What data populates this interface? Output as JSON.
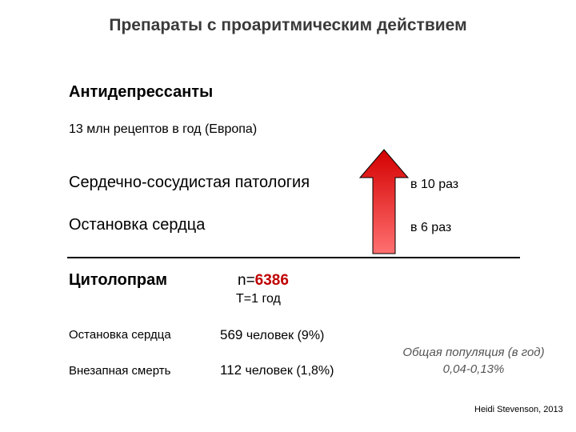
{
  "slide": {
    "title": "Препараты с проаритмическим действием",
    "section_heading": "Антидепрессанты",
    "prescriptions": "13 млн рецептов в год (Европа)",
    "risks": [
      {
        "label": "Сердечно-сосудистая патология",
        "value": "в 10 раз"
      },
      {
        "label": "Остановка сердца",
        "value": "в 6 раз"
      }
    ],
    "drug": {
      "name": "Цитолопрам",
      "n_prefix": "n=",
      "n_value": "6386",
      "period": "Т=1 год"
    },
    "outcomes": [
      {
        "label": "Остановка сердца",
        "count": "569",
        "suffix": " человек  (9%)"
      },
      {
        "label": "Внезапная смерть",
        "count": "112",
        "suffix": " человек  (1,8%)"
      }
    ],
    "population": {
      "line1": "Общая популяция (в год)",
      "line2": "0,04-0,13%"
    },
    "citation": "Heidi Stevenson, 2013"
  },
  "colors": {
    "arrow_top": "#d40000",
    "arrow_bottom": "#ff7070",
    "n_value": "#c00000"
  },
  "icons": {
    "increase_arrow": "up-arrow-icon"
  }
}
